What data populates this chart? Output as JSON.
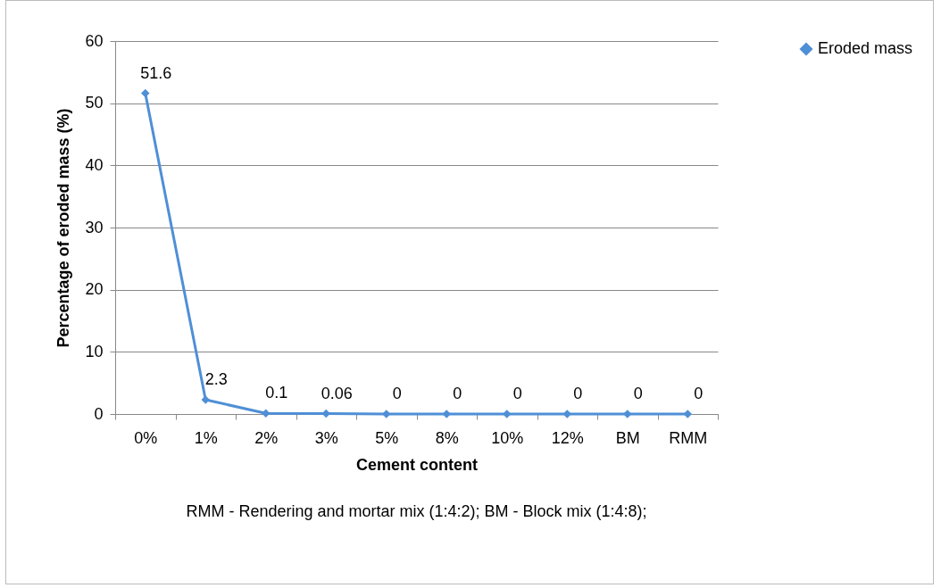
{
  "chart_data": {
    "type": "line",
    "xlabel": "Cement content",
    "ylabel": "Percentage of eroded  mass (%)",
    "categories": [
      "0%",
      "1%",
      "2%",
      "3%",
      "5%",
      "8%",
      "10%",
      "12%",
      "BM",
      "RMM"
    ],
    "series": [
      {
        "name": "Eroded mass",
        "color": "#4f8fd6",
        "values": [
          51.6,
          2.3,
          0.1,
          0.06,
          0,
          0,
          0,
          0,
          0,
          0
        ]
      }
    ],
    "ylim": [
      0,
      60
    ],
    "yticks": [
      0,
      10,
      20,
      30,
      40,
      50,
      60
    ],
    "grid": "y",
    "legend": "right",
    "marker": "diamond",
    "data_labels": true,
    "annotations": [
      "RMM - Rendering and mortar mix (1:4:2); BM - Block mix (1:4:8);"
    ]
  }
}
